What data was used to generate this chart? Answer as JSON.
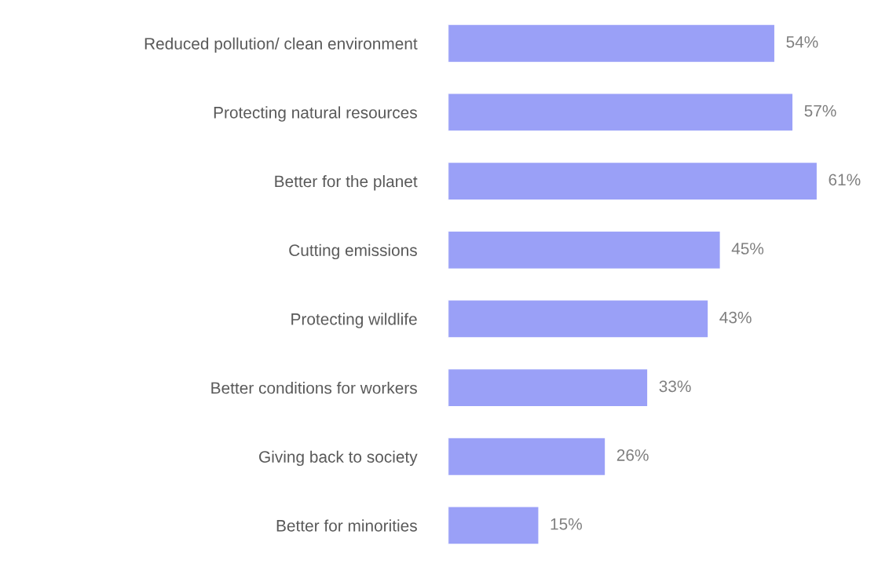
{
  "chart_data": {
    "type": "bar",
    "orientation": "horizontal",
    "categories": [
      "Reduced pollution/ clean environment",
      "Protecting natural resources",
      "Better for the planet",
      "Cutting emissions",
      "Protecting wildlife",
      "Better conditions for workers",
      "Giving back to society",
      "Better for minorities"
    ],
    "values": [
      54,
      57,
      61,
      45,
      43,
      33,
      26,
      15
    ],
    "value_labels": [
      "54%",
      "57%",
      "61%",
      "45%",
      "43%",
      "33%",
      "26%",
      "15%"
    ],
    "color": "#9aa0f7"
  }
}
